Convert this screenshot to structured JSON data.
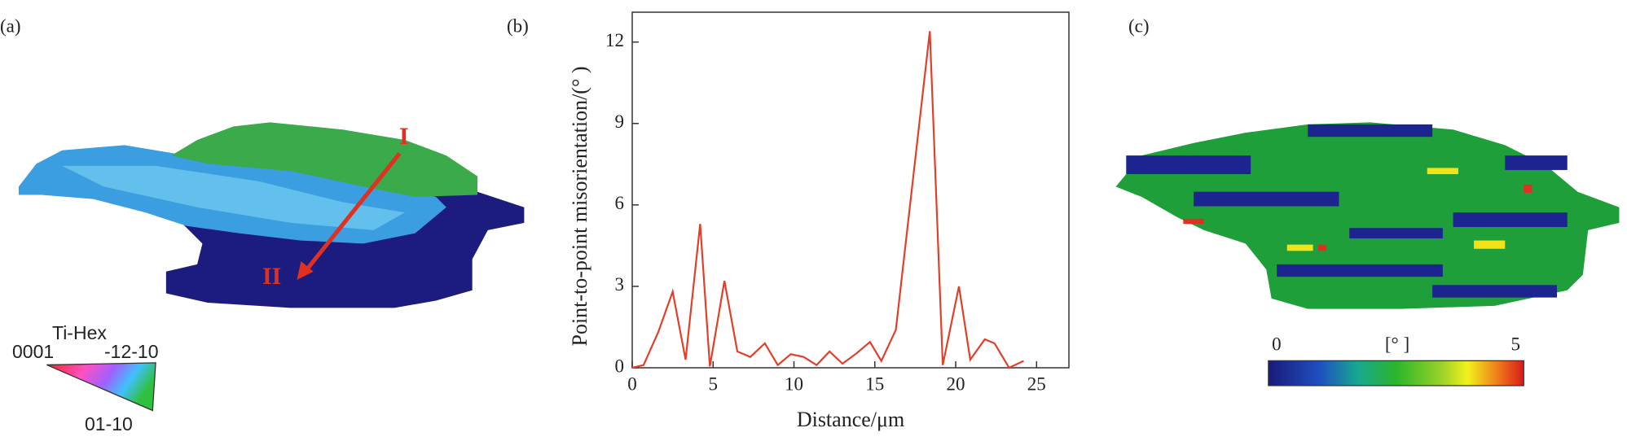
{
  "panel_labels": [
    "(a)",
    "(b)",
    "(c)"
  ],
  "ipf_legend": {
    "title": "Ti-Hex",
    "corners": [
      "0001",
      "-12-10",
      "01-10"
    ]
  },
  "markers": [
    "I",
    "II"
  ],
  "colorbar": {
    "ticks": [
      0,
      5
    ],
    "label": "[° ]"
  },
  "chart_data": {
    "type": "line",
    "color": "#e0402a",
    "x_label": "Distance/μm",
    "y_label": "Point-to-point misorientation/(° )",
    "x": [
      0,
      0.7,
      1.6,
      2.5,
      3.3,
      4.2,
      4.8,
      5.7,
      6.5,
      7.3,
      8.2,
      9,
      9.8,
      10.6,
      11.4,
      12.2,
      13,
      13.8,
      14.7,
      15.4,
      16.3,
      18.4,
      19.2,
      20.2,
      20.9,
      21.8,
      22.4,
      23.3,
      24.2
    ],
    "values": [
      0,
      0.1,
      1.3,
      2.8,
      0.3,
      5.3,
      0.05,
      3.2,
      0.6,
      0.4,
      0.9,
      0.1,
      0.5,
      0.4,
      0.1,
      0.6,
      0.15,
      0.5,
      0.95,
      0.25,
      1.4,
      12.4,
      0.1,
      3.0,
      0.3,
      1.05,
      0.9,
      0,
      0.25
    ],
    "xlim": [
      0,
      27
    ],
    "ylim": [
      0,
      13.1
    ],
    "xticks": [
      0,
      5,
      10,
      15,
      20,
      25
    ],
    "yticks": [
      0,
      3,
      6,
      9,
      12
    ]
  }
}
